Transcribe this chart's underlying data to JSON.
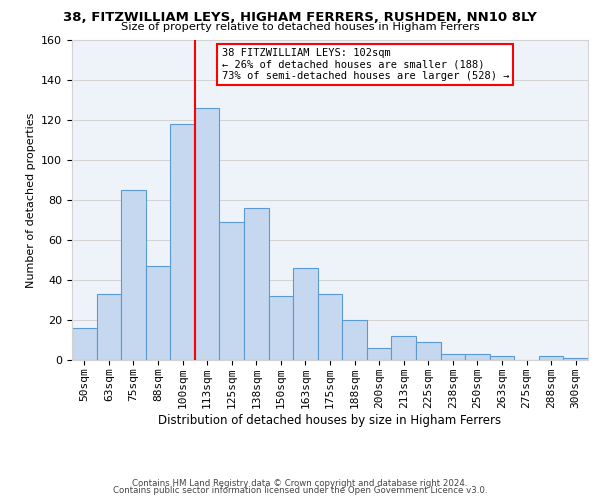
{
  "title1": "38, FITZWILLIAM LEYS, HIGHAM FERRERS, RUSHDEN, NN10 8LY",
  "title2": "Size of property relative to detached houses in Higham Ferrers",
  "xlabel": "Distribution of detached houses by size in Higham Ferrers",
  "ylabel": "Number of detached properties",
  "bar_labels": [
    "50sqm",
    "63sqm",
    "75sqm",
    "88sqm",
    "100sqm",
    "113sqm",
    "125sqm",
    "138sqm",
    "150sqm",
    "163sqm",
    "175sqm",
    "188sqm",
    "200sqm",
    "213sqm",
    "225sqm",
    "238sqm",
    "250sqm",
    "263sqm",
    "275sqm",
    "288sqm",
    "300sqm"
  ],
  "bar_values": [
    16,
    33,
    85,
    47,
    118,
    126,
    69,
    76,
    32,
    46,
    33,
    20,
    6,
    12,
    9,
    3,
    3,
    2,
    0,
    2,
    1
  ],
  "bar_color": "#c5d8ef",
  "bar_edge_color": "#5b9bd5",
  "vline_x": 4.5,
  "vline_color": "red",
  "annotation_title": "38 FITZWILLIAM LEYS: 102sqm",
  "annotation_line1": "← 26% of detached houses are smaller (188)",
  "annotation_line2": "73% of semi-detached houses are larger (528) →",
  "annotation_box_color": "white",
  "annotation_box_edge": "red",
  "ylim": [
    0,
    160
  ],
  "yticks": [
    0,
    20,
    40,
    60,
    80,
    100,
    120,
    140,
    160
  ],
  "footer1": "Contains HM Land Registry data © Crown copyright and database right 2024.",
  "footer2": "Contains public sector information licensed under the Open Government Licence v3.0.",
  "bg_color": "#eef3fa"
}
